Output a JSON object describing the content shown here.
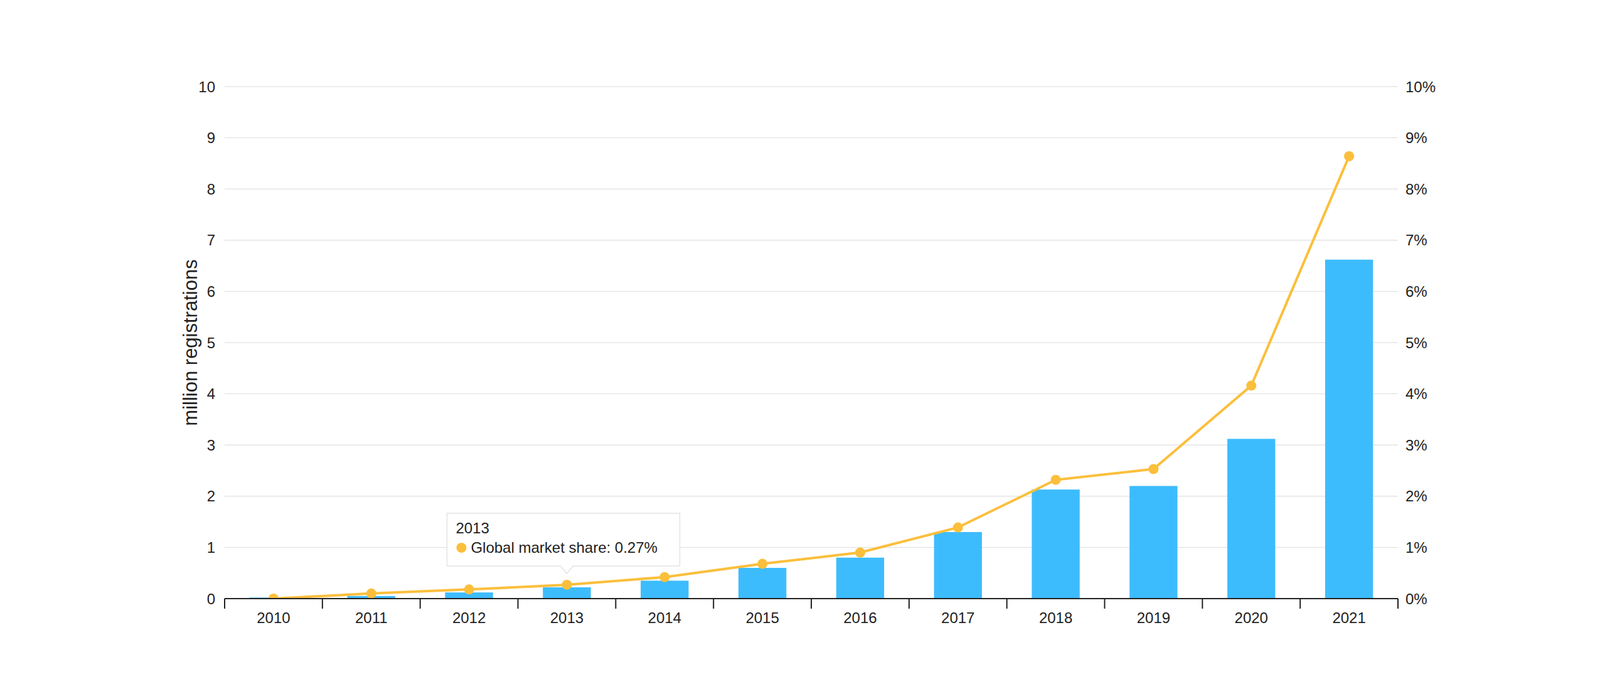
{
  "chart_data": {
    "type": "bar",
    "y_label": "million registrations",
    "categories": [
      "2010",
      "2011",
      "2012",
      "2013",
      "2014",
      "2015",
      "2016",
      "2017",
      "2018",
      "2019",
      "2020",
      "2021"
    ],
    "series": [
      {
        "type": "bar",
        "color": "#3dbcfd",
        "values": [
          0.02,
          0.05,
          0.12,
          0.22,
          0.35,
          0.6,
          0.8,
          1.3,
          2.13,
          2.2,
          3.12,
          6.62
        ]
      },
      {
        "type": "line",
        "axis": "y2",
        "color": "#fbbf3c",
        "marker": "circle",
        "line_style": "solid",
        "values": [
          0.0,
          0.1,
          0.18,
          0.27,
          0.42,
          0.68,
          0.9,
          1.39,
          2.32,
          2.53,
          4.16,
          8.64
        ]
      }
    ],
    "ylim": [
      0,
      10
    ],
    "yticks": [
      0,
      1,
      2,
      3,
      4,
      5,
      6,
      7,
      8,
      9,
      10
    ],
    "y2lim": [
      0,
      10
    ],
    "y2ticks": [
      {
        "value": 0,
        "label": "0%"
      },
      {
        "value": 1,
        "label": "1%"
      },
      {
        "value": 2,
        "label": "2%"
      },
      {
        "value": 3,
        "label": "3%"
      },
      {
        "value": 4,
        "label": "4%"
      },
      {
        "value": 5,
        "label": "5%"
      },
      {
        "value": 6,
        "label": "6%"
      },
      {
        "value": 7,
        "label": "7%"
      },
      {
        "value": 8,
        "label": "8%"
      },
      {
        "value": 9,
        "label": "9%"
      },
      {
        "value": 10,
        "label": "10%"
      }
    ],
    "grid": true,
    "annotations": [
      {
        "x": "2013",
        "text": "Global market share: 0.27%"
      }
    ]
  }
}
